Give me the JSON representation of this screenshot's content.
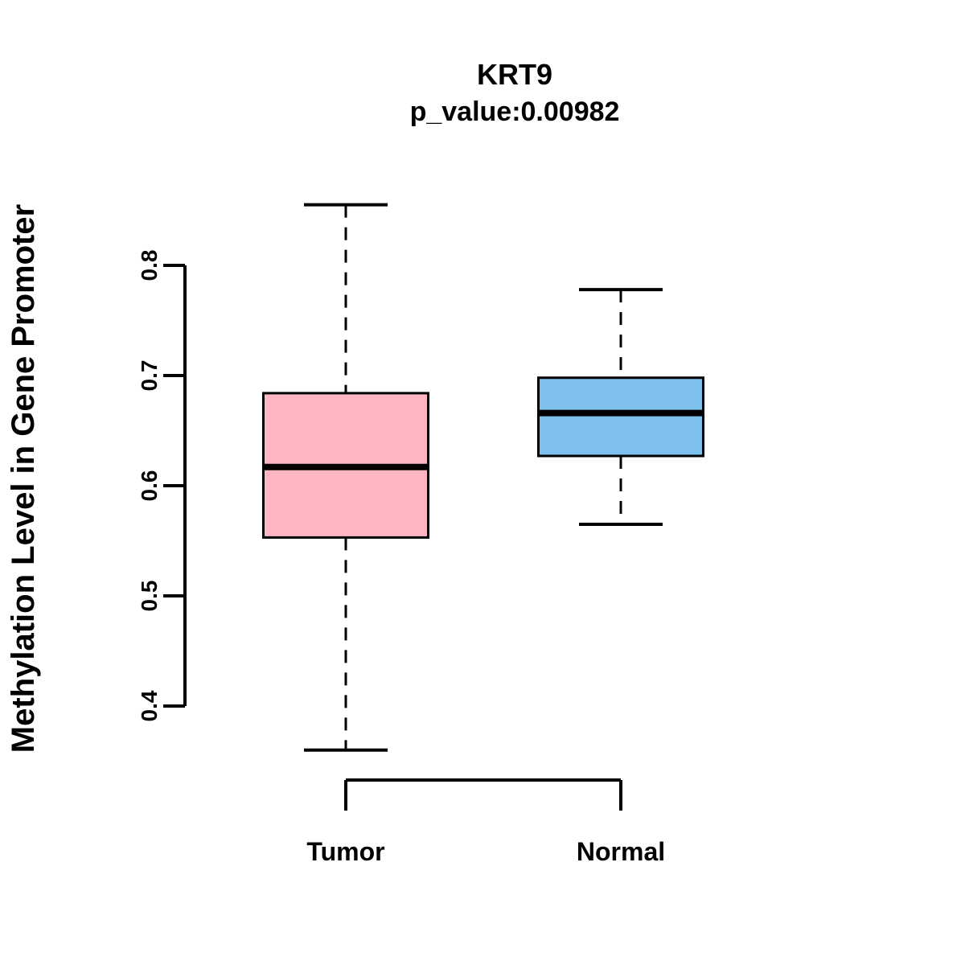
{
  "chart_data": {
    "type": "boxplot",
    "title": "KRT9",
    "subtitle": "p_value:0.00982",
    "ylabel": "Methylation Level in Gene Promoter",
    "xlabel": "",
    "categories": [
      "Tumor",
      "Normal"
    ],
    "ylim": [
      0.4,
      0.8
    ],
    "yticks": [
      0.4,
      0.5,
      0.6,
      0.7,
      0.8
    ],
    "grid": false,
    "legend": "none",
    "series": [
      {
        "name": "Tumor",
        "color": "#FFB6C1",
        "lower_whisker": 0.36,
        "q1": 0.553,
        "median": 0.617,
        "q3": 0.684,
        "upper_whisker": 0.855
      },
      {
        "name": "Normal",
        "color": "#7EC0EE",
        "lower_whisker": 0.565,
        "q1": 0.627,
        "median": 0.666,
        "q3": 0.698,
        "upper_whisker": 0.778
      }
    ],
    "box_border_color": "#000000",
    "median_color": "#000000",
    "whisker_style": "dashed"
  }
}
